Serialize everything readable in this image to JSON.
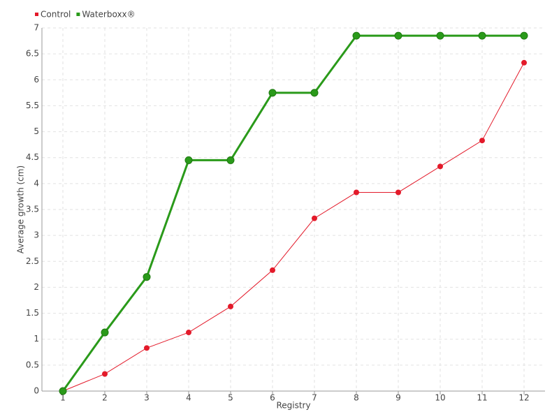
{
  "chart_data": {
    "type": "line",
    "x_label": "Registry",
    "y_label": "Average growth (cm)",
    "x": [
      1,
      2,
      3,
      4,
      5,
      6,
      7,
      8,
      9,
      10,
      11,
      12
    ],
    "series": [
      {
        "name": "Control",
        "color": "#e31a2a",
        "values": [
          0,
          0.33,
          0.83,
          1.13,
          1.63,
          2.33,
          3.33,
          3.83,
          3.83,
          4.33,
          4.83,
          6.33
        ]
      },
      {
        "name": "Waterboxx®",
        "color": "#2a9a1a",
        "values": [
          0,
          1.13,
          2.2,
          4.45,
          4.45,
          5.75,
          5.75,
          6.85,
          6.85,
          6.85,
          6.85,
          6.85
        ]
      }
    ],
    "xlim": [
      0.5,
      12.5
    ],
    "xticks": [
      1,
      2,
      3,
      4,
      5,
      6,
      7,
      8,
      9,
      10,
      11,
      12
    ],
    "ylim": [
      0,
      7
    ],
    "yticks": [
      0,
      0.5,
      1,
      1.5,
      2,
      2.5,
      3,
      3.5,
      4,
      4.5,
      5,
      5.5,
      6,
      6.5,
      7
    ],
    "grid": true,
    "legend": "top-left"
  }
}
